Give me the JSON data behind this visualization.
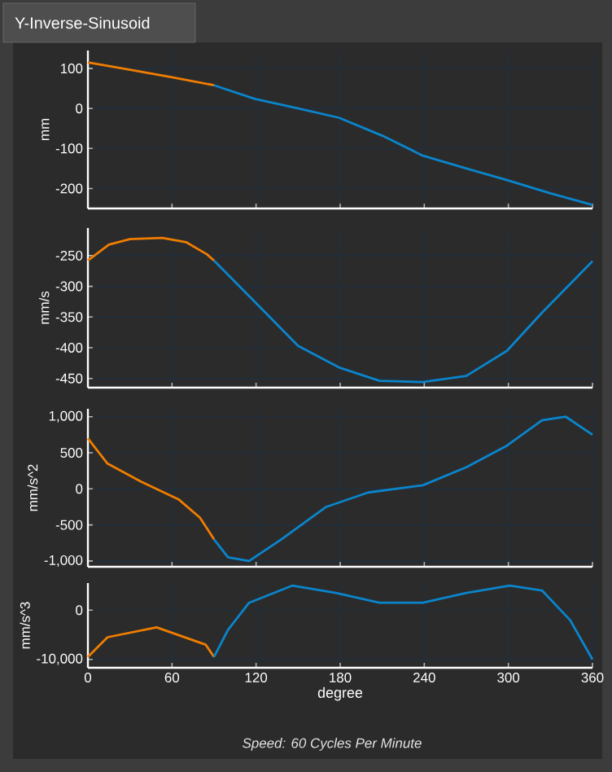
{
  "chart_data": [
    {
      "type": "line",
      "title": "Y-Inverse-Sinusoid",
      "ylabel": "mm",
      "xlim": [
        0,
        360
      ],
      "xticks": [
        0,
        60,
        120,
        180,
        240,
        300,
        360
      ],
      "ylim": [
        -250,
        145
      ],
      "yticks": [
        -200,
        -100,
        0,
        100
      ],
      "tick_labels": "y",
      "grid": true,
      "series": [
        {
          "color": "#f07d00",
          "x": [
            0,
            30,
            60,
            90
          ],
          "values": [
            115,
            97,
            78,
            58
          ]
        },
        {
          "color": "#0a85cc",
          "x": [
            90,
            119,
            150,
            179,
            210,
            239,
            270,
            299,
            330,
            360
          ],
          "values": [
            58,
            24,
            0,
            -23,
            -68,
            -118,
            -150,
            -179,
            -212,
            -241
          ]
        }
      ]
    },
    {
      "type": "line",
      "ylabel": "mm/s",
      "xlim": [
        0,
        360
      ],
      "xticks": [
        0,
        60,
        120,
        180,
        240,
        300,
        360
      ],
      "ylim": [
        -465,
        -205
      ],
      "yticks": [
        -450,
        -400,
        -350,
        -300,
        -250
      ],
      "tick_labels": "y",
      "grid": true,
      "series": [
        {
          "color": "#f07d00",
          "x": [
            0,
            15,
            30,
            53,
            70,
            85,
            90
          ],
          "values": [
            -258,
            -232,
            -223,
            -221,
            -228,
            -248,
            -258
          ]
        },
        {
          "color": "#0a85cc",
          "x": [
            90,
            119,
            150,
            179,
            208,
            239,
            270,
            299,
            324,
            360
          ],
          "values": [
            -258,
            -325,
            -397,
            -432,
            -454,
            -456,
            -446,
            -405,
            -343,
            -259
          ]
        }
      ]
    },
    {
      "type": "line",
      "ylabel": "mm/s^2",
      "xlim": [
        0,
        360
      ],
      "xticks": [
        0,
        60,
        120,
        180,
        240,
        300,
        360
      ],
      "ylim": [
        -1080,
        1110
      ],
      "yticks": [
        {
          "value": -1000,
          "label": "-1,000"
        },
        -500,
        0,
        500,
        {
          "value": 1000,
          "label": "1,000"
        }
      ],
      "tick_labels": "y",
      "grid": true,
      "series": [
        {
          "color": "#f07d00",
          "x": [
            0,
            14,
            38,
            65,
            80,
            90
          ],
          "values": [
            700,
            350,
            100,
            -150,
            -400,
            -700
          ]
        },
        {
          "color": "#0a85cc",
          "x": [
            90,
            100,
            115,
            138,
            170,
            200,
            239,
            270,
            299,
            324,
            341,
            360
          ],
          "values": [
            -700,
            -950,
            -1000,
            -700,
            -250,
            -50,
            50,
            300,
            600,
            950,
            1000,
            750
          ]
        }
      ]
    },
    {
      "type": "line",
      "ylabel": "mm/s^3",
      "xlabel": "degree",
      "annotations": [
        "Speed: 60 Cycles Per Minute"
      ],
      "xlim": [
        0,
        360
      ],
      "xticks": [
        0,
        60,
        120,
        180,
        240,
        300,
        360
      ],
      "ylim": [
        -11700,
        5500
      ],
      "yticks": [
        {
          "value": -10000,
          "label": "-10,000"
        },
        0
      ],
      "grid": true,
      "series": [
        {
          "color": "#f07d00",
          "x": [
            0,
            14,
            49,
            84,
            90
          ],
          "values": [
            -9500,
            -5500,
            -3500,
            -7000,
            -9500
          ]
        },
        {
          "color": "#0a85cc",
          "x": [
            90,
            100,
            115,
            146,
            177,
            208,
            239,
            270,
            301,
            324,
            344,
            360
          ],
          "values": [
            -9500,
            -4000,
            1500,
            5000,
            3500,
            1500,
            1500,
            3500,
            5000,
            4000,
            -2000,
            -10000
          ]
        }
      ]
    }
  ]
}
